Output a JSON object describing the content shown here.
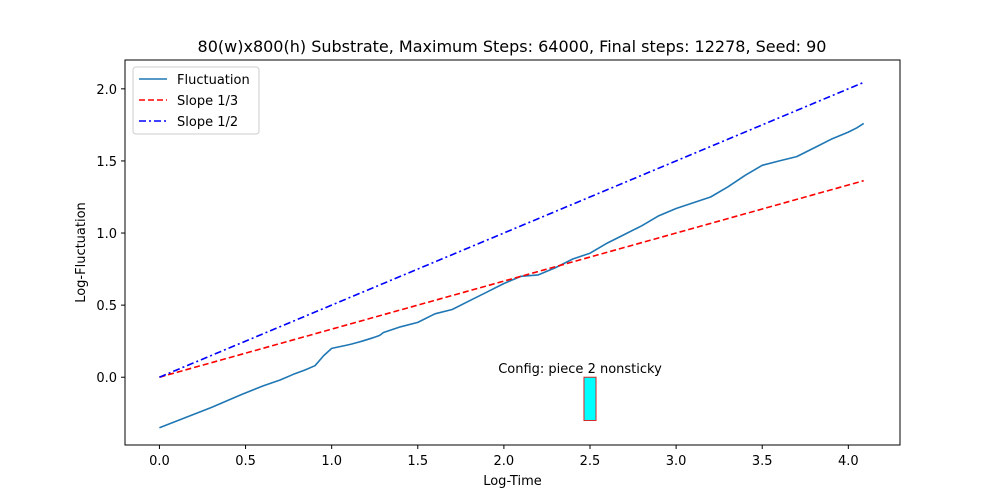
{
  "chart_data": {
    "type": "line",
    "title": "80(w)x800(h) Substrate, Maximum Steps: 64000, Final steps: 12278, Seed: 90",
    "xlabel": "Log-Time",
    "ylabel": "Log-Fluctuation",
    "xlim": [
      -0.2,
      4.3
    ],
    "ylim": [
      -0.47,
      2.2
    ],
    "xticks": [
      0.0,
      0.5,
      1.0,
      1.5,
      2.0,
      2.5,
      3.0,
      3.5,
      4.0
    ],
    "xtick_labels": [
      "0.0",
      "0.5",
      "1.0",
      "1.5",
      "2.0",
      "2.5",
      "3.0",
      "3.5",
      "4.0"
    ],
    "yticks": [
      0.0,
      0.5,
      1.0,
      1.5,
      2.0
    ],
    "ytick_labels": [
      "0.0",
      "0.5",
      "1.0",
      "1.5",
      "2.0"
    ],
    "grid": false,
    "legend_position": "top-left",
    "series": [
      {
        "name": "Fluctuation",
        "color": "#1f77b4",
        "style": "solid",
        "x": [
          0.0,
          0.301,
          0.477,
          0.602,
          0.699,
          0.778,
          0.845,
          0.903,
          0.954,
          1.0,
          1.041,
          1.079,
          1.114,
          1.146,
          1.176,
          1.204,
          1.23,
          1.255,
          1.279,
          1.301,
          1.4,
          1.5,
          1.6,
          1.7,
          1.8,
          1.9,
          2.0,
          2.1,
          2.2,
          2.3,
          2.4,
          2.5,
          2.6,
          2.7,
          2.8,
          2.9,
          3.0,
          3.1,
          3.2,
          3.3,
          3.4,
          3.5,
          3.6,
          3.7,
          3.8,
          3.9,
          4.0,
          4.05,
          4.089
        ],
        "y": [
          -0.35,
          -0.21,
          -0.12,
          -0.06,
          -0.02,
          0.02,
          0.05,
          0.08,
          0.15,
          0.2,
          0.21,
          0.22,
          0.23,
          0.24,
          0.25,
          0.26,
          0.27,
          0.28,
          0.29,
          0.31,
          0.35,
          0.38,
          0.44,
          0.47,
          0.53,
          0.59,
          0.65,
          0.7,
          0.71,
          0.76,
          0.82,
          0.86,
          0.93,
          0.99,
          1.05,
          1.12,
          1.17,
          1.21,
          1.25,
          1.32,
          1.4,
          1.47,
          1.5,
          1.53,
          1.59,
          1.65,
          1.7,
          1.73,
          1.76
        ]
      },
      {
        "name": "Slope 1/3",
        "color": "#ff0000",
        "style": "dashed",
        "x": [
          0.0,
          4.089
        ],
        "y": [
          0.0,
          1.363
        ]
      },
      {
        "name": "Slope 1/2",
        "color": "#0000ff",
        "style": "dashdot",
        "x": [
          0.0,
          4.089
        ],
        "y": [
          0.0,
          2.045
        ]
      }
    ],
    "annotation": {
      "text": "Config:  piece 2 nonsticky",
      "x": 2.5,
      "y": 0.03
    },
    "marker_rect": {
      "x_left": 2.465,
      "x_right": 2.535,
      "y_top": 0.0,
      "y_bottom": -0.3,
      "fill": "#00ffff",
      "stroke": "#d62728"
    }
  }
}
